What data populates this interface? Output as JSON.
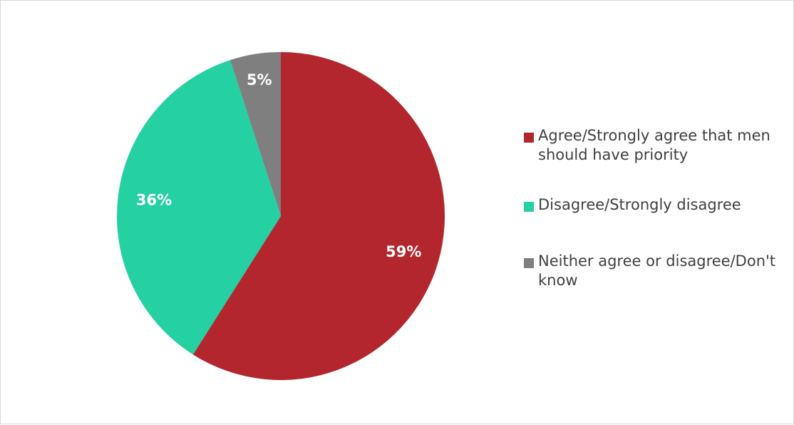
{
  "chart_data": {
    "type": "pie",
    "title": "",
    "slices": [
      {
        "label": "Agree/Strongly agree that men should have priority",
        "value": 59,
        "display": "59%",
        "color": "#b3262e"
      },
      {
        "label": "Disagree/Strongly disagree",
        "value": 36,
        "display": "36%",
        "color": "#25d0a3"
      },
      {
        "label": "Neither agree or disagree/Don't know",
        "value": 5,
        "display": "5%",
        "color": "#7f7f7f"
      }
    ],
    "start": "12 o'clock",
    "direction": "clockwise",
    "legend_position": "right"
  }
}
